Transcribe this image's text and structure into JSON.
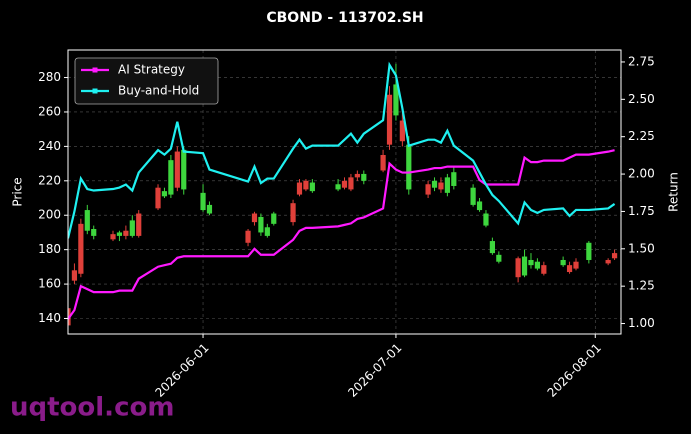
{
  "chart_data": {
    "type": "candlestick",
    "title": "CBOND - 113702.SH",
    "ylabel": "Price",
    "y2label": "Return",
    "watermark": "uqtool.com",
    "x": [
      "2026-05-11",
      "2026-05-12",
      "2026-05-13",
      "2026-05-14",
      "2026-05-15",
      "2026-05-18",
      "2026-05-19",
      "2026-05-20",
      "2026-05-21",
      "2026-05-22",
      "2026-05-25",
      "2026-05-26",
      "2026-05-27",
      "2026-05-28",
      "2026-05-29",
      "2026-06-01",
      "2026-06-02",
      "2026-06-08",
      "2026-06-09",
      "2026-06-10",
      "2026-06-11",
      "2026-06-12",
      "2026-06-15",
      "2026-06-16",
      "2026-06-17",
      "2026-06-18",
      "2026-06-22",
      "2026-06-23",
      "2026-06-24",
      "2026-06-25",
      "2026-06-26",
      "2026-06-29",
      "2026-06-30",
      "2026-07-01",
      "2026-07-02",
      "2026-07-03",
      "2026-07-06",
      "2026-07-07",
      "2026-07-08",
      "2026-07-09",
      "2026-07-10",
      "2026-07-13",
      "2026-07-14",
      "2026-07-15",
      "2026-07-16",
      "2026-07-17",
      "2026-07-20",
      "2026-07-21",
      "2026-07-22",
      "2026-07-23",
      "2026-07-24",
      "2026-07-27",
      "2026-07-28",
      "2026-07-29",
      "2026-07-31",
      "2026-08-03",
      "2026-08-04"
    ],
    "open": [
      136,
      162,
      166,
      203,
      192,
      186,
      190,
      188,
      197,
      188,
      204,
      214,
      232,
      216,
      238,
      213,
      206,
      184,
      196,
      199,
      193,
      201,
      196,
      212,
      215,
      219,
      218,
      216,
      215,
      222,
      224,
      226,
      241,
      276,
      243,
      241,
      212,
      220,
      215,
      222,
      225,
      216,
      208,
      201,
      185,
      177,
      164,
      176,
      174,
      173,
      166,
      174,
      167,
      169,
      184,
      172,
      175
    ],
    "high": [
      150,
      172,
      198,
      206,
      194,
      191,
      191,
      194,
      200,
      203,
      218,
      216,
      235,
      240,
      240,
      218,
      208,
      192,
      202,
      201,
      195,
      202,
      209,
      221,
      221,
      221,
      221,
      222,
      224,
      226,
      226,
      238,
      275,
      288,
      262,
      246,
      220,
      222,
      222,
      224,
      228,
      218,
      210,
      203,
      187,
      179,
      176,
      180,
      178,
      175,
      173,
      176,
      173,
      175,
      185,
      175,
      180
    ],
    "low": [
      134,
      160,
      164,
      189,
      186,
      185,
      185,
      186,
      187,
      187,
      203,
      210,
      210,
      214,
      212,
      202,
      200,
      182,
      194,
      188,
      187,
      194,
      194,
      211,
      214,
      213,
      214,
      215,
      214,
      220,
      218,
      225,
      238,
      255,
      240,
      212,
      210,
      214,
      213,
      211,
      215,
      205,
      202,
      193,
      177,
      172,
      161,
      164,
      169,
      168,
      165,
      170,
      166,
      168,
      172,
      171,
      174
    ],
    "close": [
      146,
      168,
      195,
      191,
      188,
      189,
      188,
      191,
      188,
      201,
      216,
      211,
      212,
      237,
      215,
      203,
      201,
      191,
      201,
      190,
      188,
      195,
      207,
      219,
      220,
      214,
      215,
      220,
      222,
      224,
      220,
      235,
      270,
      258,
      255,
      215,
      218,
      216,
      219,
      213,
      217,
      206,
      203,
      194,
      178,
      173,
      175,
      165,
      171,
      169,
      171,
      171,
      171,
      173,
      174,
      174,
      178
    ],
    "up_color": "#e0403a",
    "down_color": "#3ed63e",
    "series": [
      {
        "name": "AI Strategy",
        "color": "#ff19ff",
        "axis": "y2",
        "values": [
          1.03,
          1.09,
          1.25,
          1.23,
          1.21,
          1.21,
          1.22,
          1.22,
          1.22,
          1.3,
          1.38,
          1.39,
          1.4,
          1.44,
          1.45,
          1.45,
          1.45,
          1.45,
          1.5,
          1.46,
          1.46,
          1.46,
          1.56,
          1.62,
          1.64,
          1.64,
          1.65,
          1.66,
          1.67,
          1.7,
          1.71,
          1.77,
          2.07,
          2.03,
          2.01,
          2.01,
          2.03,
          2.04,
          2.04,
          2.05,
          2.05,
          2.05,
          1.96,
          1.93,
          1.93,
          1.93,
          1.93,
          2.11,
          2.08,
          2.08,
          2.09,
          2.09,
          2.11,
          2.13,
          2.13,
          2.15,
          2.16
        ]
      },
      {
        "name": "Buy-and-Hold",
        "color": "#1ff0f0",
        "axis": "y2",
        "values": [
          1.57,
          1.75,
          1.97,
          1.9,
          1.89,
          1.9,
          1.91,
          1.93,
          1.89,
          2.01,
          2.16,
          2.13,
          2.17,
          2.35,
          2.15,
          2.14,
          2.03,
          1.95,
          2.05,
          1.94,
          1.97,
          1.97,
          2.17,
          2.23,
          2.17,
          2.19,
          2.19,
          2.23,
          2.27,
          2.21,
          2.27,
          2.36,
          2.73,
          2.66,
          2.44,
          2.19,
          2.23,
          2.23,
          2.21,
          2.29,
          2.19,
          2.09,
          2.01,
          1.93,
          1.86,
          1.82,
          1.67,
          1.81,
          1.76,
          1.74,
          1.76,
          1.77,
          1.72,
          1.76,
          1.76,
          1.77,
          1.8
        ]
      }
    ],
    "xlim": [
      "2026-05-11",
      "2026-08-05"
    ],
    "xticks": [
      "2026-06-01",
      "2026-07-01",
      "2026-08-01"
    ],
    "ylim": [
      131,
      296
    ],
    "yticks": [
      140,
      160,
      180,
      200,
      220,
      240,
      260,
      280
    ],
    "y2lim": [
      0.93,
      2.83
    ],
    "y2ticks": [
      {
        "value": 1,
        "label": "1.00"
      },
      1.25,
      {
        "value": 1.5,
        "label": "1.50"
      },
      1.75,
      {
        "value": 2,
        "label": "2.00"
      },
      2.25,
      {
        "value": 2.5,
        "label": "2.50"
      },
      2.75
    ],
    "grid": true,
    "legend": "upper left"
  }
}
